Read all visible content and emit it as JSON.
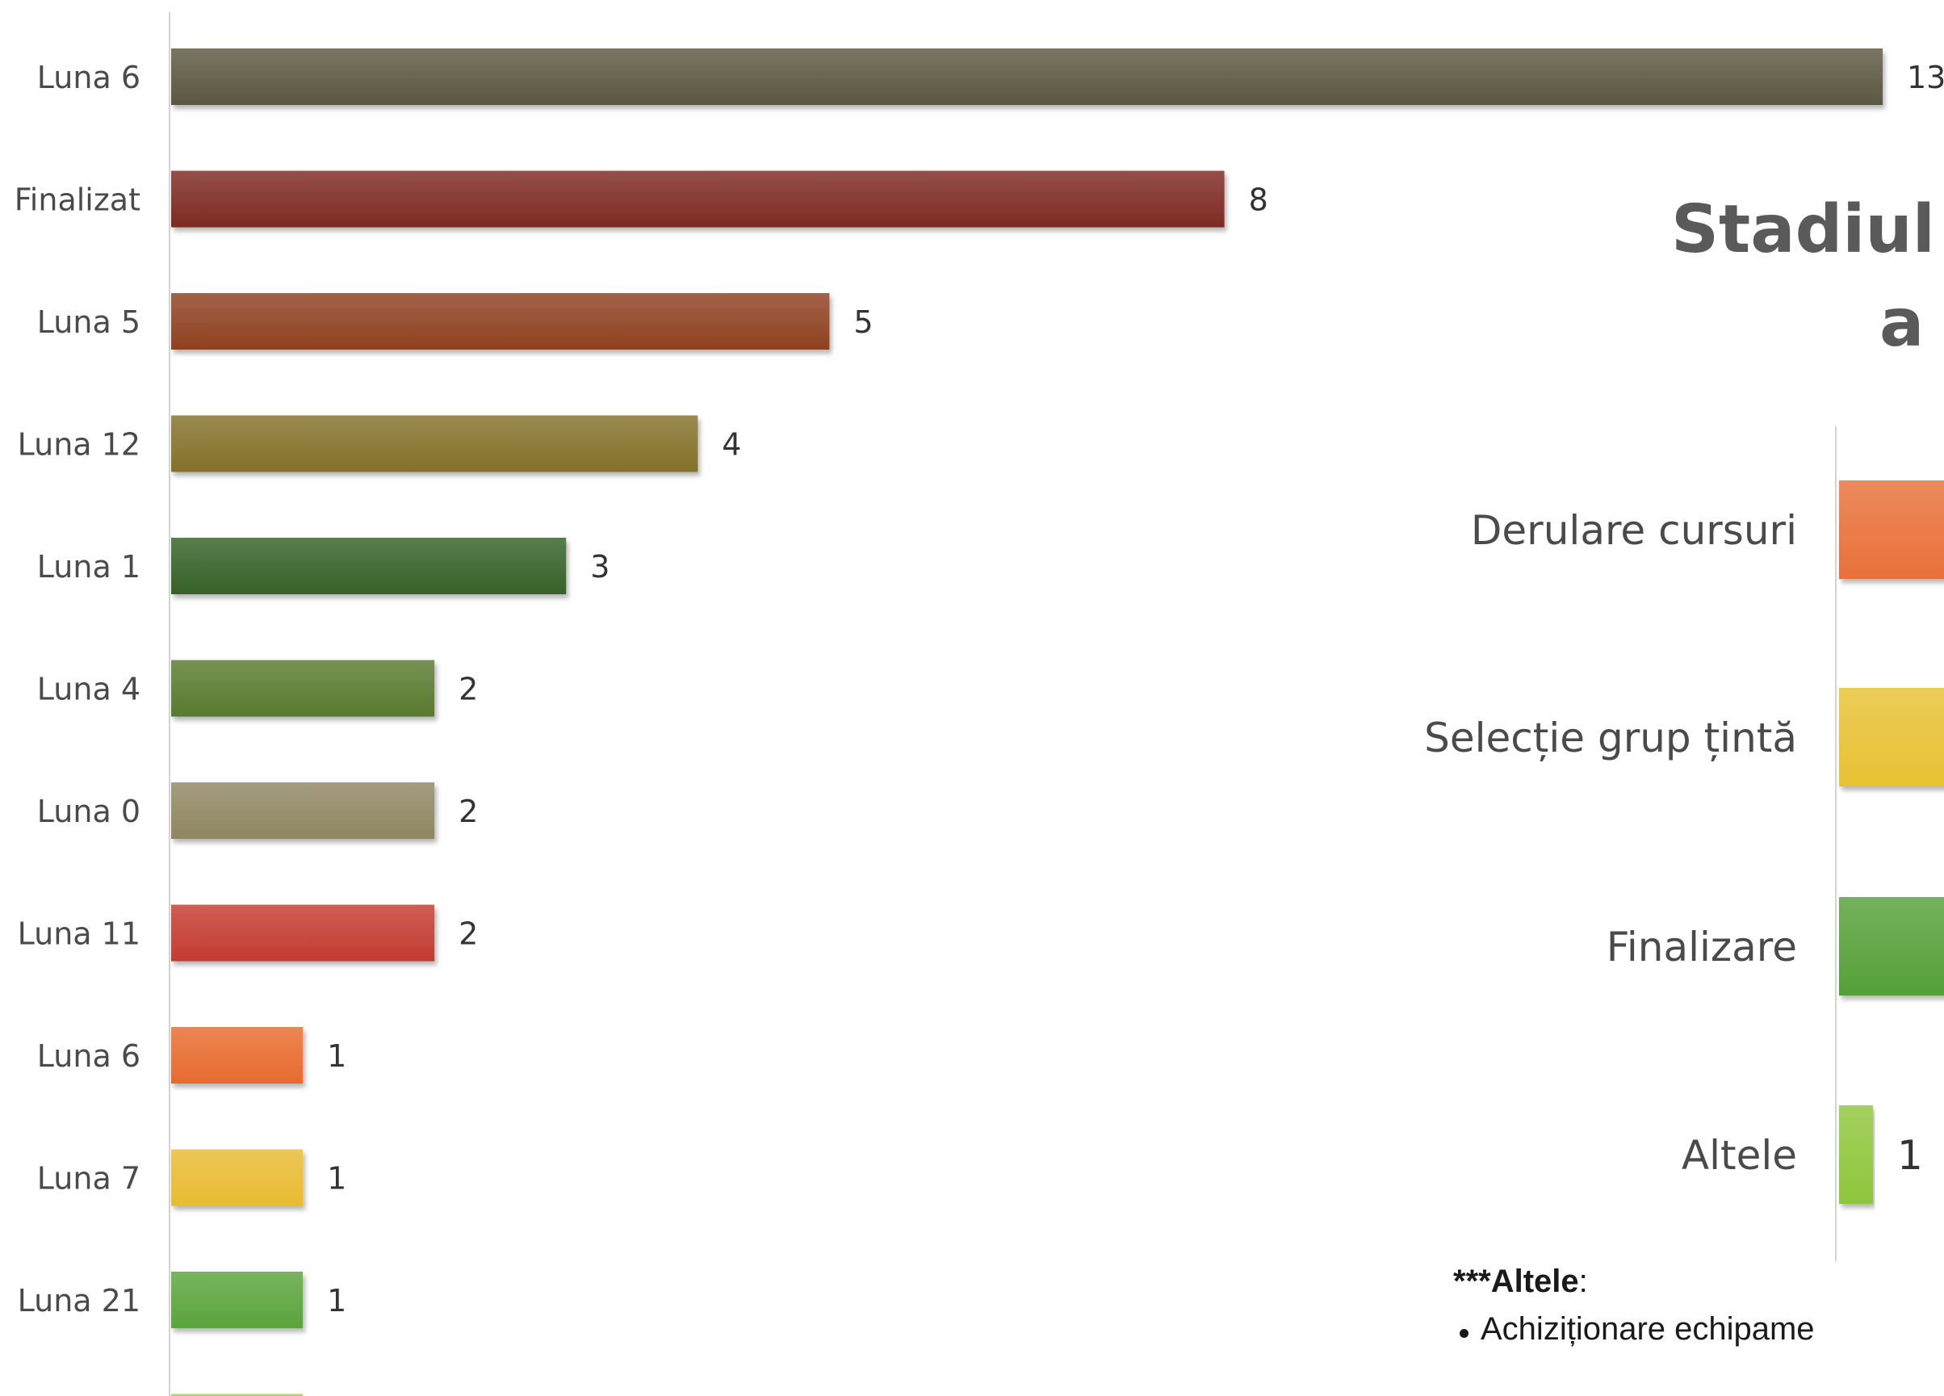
{
  "chart_data": [
    {
      "type": "bar",
      "orientation": "horizontal",
      "categories": [
        "Luna 6",
        "Finalizat",
        "Luna 5",
        "Luna 12",
        "Luna 1",
        "Luna 4",
        "Luna 0",
        "Luna 11",
        "Luna  6",
        "Luna 7",
        "Luna 21",
        ""
      ],
      "values": [
        13,
        8,
        5,
        4,
        3,
        2,
        2,
        2,
        1,
        1,
        1,
        1
      ],
      "value_labels": [
        "13",
        "8",
        "5",
        "4",
        "3",
        "2",
        "2",
        "2",
        "1",
        "1",
        "1",
        ""
      ],
      "colors": [
        "#5c5740",
        "#7d2a22",
        "#8e4121",
        "#84702a",
        "#356127",
        "#587a2f",
        "#8f8660",
        "#c33b30",
        "#e86a2e",
        "#e8bb32",
        "#5aa43c",
        "#9ccc46"
      ],
      "xlim": [
        0,
        13
      ],
      "grid": false,
      "legend": "none"
    },
    {
      "type": "bar",
      "orientation": "horizontal",
      "title_lines": [
        "Stadiul",
        "a"
      ],
      "categories": [
        "Derulare cursuri",
        "Selecție grup țintă",
        "Finalizare",
        "Altele"
      ],
      "values": [
        null,
        null,
        null,
        1
      ],
      "value_labels": [
        "",
        "",
        "",
        "1"
      ],
      "colors": [
        "#e8703a",
        "#e8c133",
        "#55a038",
        "#8fc63b"
      ],
      "grid": false,
      "legend": "none"
    }
  ],
  "note": {
    "stars": "***",
    "title": "Altele",
    "colon": ":",
    "items": [
      "Achiziționare echipame"
    ]
  }
}
